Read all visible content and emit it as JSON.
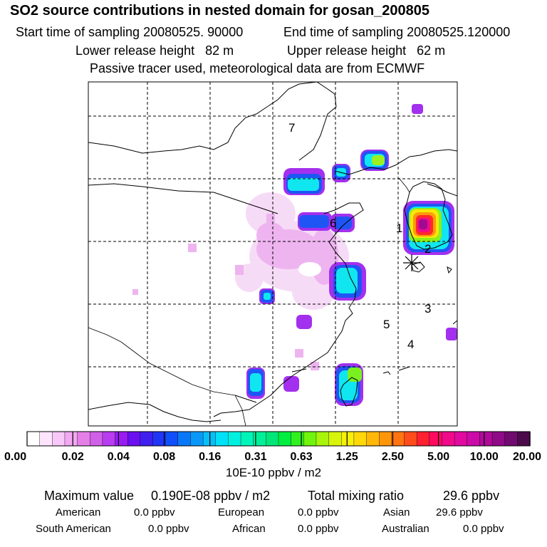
{
  "header": {
    "title": "SO2 source contributions in nested domain for gosan_200805",
    "start_label": "Start time of sampling 20080525. 90000",
    "end_label": "End time of sampling 20080525.120000",
    "lower_label": "Lower release height   82 m",
    "upper_label": "Upper release height   62 m",
    "note": "Passive tracer used, meteorological data are from ECMWF"
  },
  "map": {
    "region_labels": [
      "7",
      "6",
      "1",
      "2",
      "3",
      "5",
      "4"
    ],
    "receptor_marker": "asterisk-icon"
  },
  "colorbar": {
    "ticks": [
      "0.00",
      "0.02",
      "0.04",
      "0.08",
      "0.16",
      "0.31",
      "0.63",
      "1.25",
      "2.50",
      "5.00",
      "10.00",
      "20.00"
    ],
    "unit": "10E-10 ppbv / m2",
    "colors": [
      "#ffffff",
      "#fde6fd",
      "#f8c8f8",
      "#f2a8f2",
      "#e57fe8",
      "#d060e6",
      "#b83cf0",
      "#9a1cf2",
      "#6a10f0",
      "#4020ee",
      "#2036f6",
      "#1050fa",
      "#0a78f6",
      "#0a98f8",
      "#06bef8",
      "#00e0f6",
      "#00f0e0",
      "#00f4b8",
      "#00f09a",
      "#00e678",
      "#00ee40",
      "#30f020",
      "#70f40c",
      "#a8f40a",
      "#d8f40a",
      "#f6f00a",
      "#ffd80a",
      "#ffb80a",
      "#ff960a",
      "#ff7412",
      "#ff4c1c",
      "#ff2030",
      "#ff0a60",
      "#f00a8a",
      "#e00aa0",
      "#cc0aa8",
      "#b00a9a",
      "#900a88",
      "#700a70",
      "#4c0a4c"
    ]
  },
  "stats": {
    "max_label": "Maximum value",
    "max_value": "0.190E-08 ppbv / m2",
    "total_label": "Total mixing ratio",
    "total_value": "29.6 ppbv",
    "regions": [
      {
        "name": "American",
        "value": "0.0 ppbv"
      },
      {
        "name": "European",
        "value": "0.0 ppbv"
      },
      {
        "name": "Asian",
        "value": "29.6 ppbv"
      },
      {
        "name": "South American",
        "value": "0.0 ppbv"
      },
      {
        "name": "African",
        "value": "0.0 ppbv"
      },
      {
        "name": "Australian",
        "value": "0.0 ppbv"
      }
    ]
  }
}
